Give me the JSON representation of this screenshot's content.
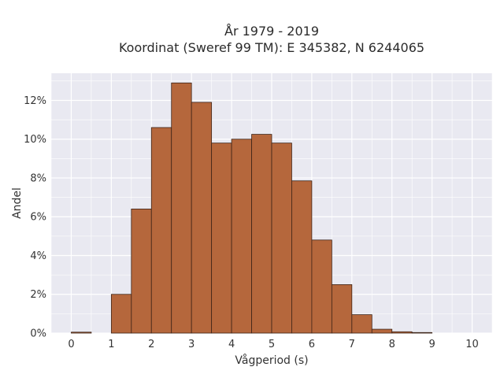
{
  "chart_data": {
    "type": "bar",
    "title": "År 1979 - 2019",
    "subtitle": "Koordinat (Sweref 99 TM): E 345382, N 6244065",
    "xlabel": "Vågperiod (s)",
    "ylabel": "Andel",
    "bin_width": 0.5,
    "bins": [
      {
        "x0": 0.0,
        "value": 0.05
      },
      {
        "x0": 1.0,
        "value": 2.0
      },
      {
        "x0": 1.5,
        "value": 6.4
      },
      {
        "x0": 2.0,
        "value": 10.6
      },
      {
        "x0": 2.5,
        "value": 12.9
      },
      {
        "x0": 3.0,
        "value": 11.9
      },
      {
        "x0": 3.5,
        "value": 9.8
      },
      {
        "x0": 4.0,
        "value": 10.0
      },
      {
        "x0": 4.5,
        "value": 10.25
      },
      {
        "x0": 5.0,
        "value": 9.8
      },
      {
        "x0": 5.5,
        "value": 7.85
      },
      {
        "x0": 6.0,
        "value": 4.8
      },
      {
        "x0": 6.5,
        "value": 2.5
      },
      {
        "x0": 7.0,
        "value": 0.95
      },
      {
        "x0": 7.5,
        "value": 0.2
      },
      {
        "x0": 8.0,
        "value": 0.07
      },
      {
        "x0": 8.5,
        "value": 0.03
      }
    ],
    "xlim": [
      -0.5,
      10.5
    ],
    "ylim": [
      0,
      13.4
    ],
    "x_ticks": [
      "0",
      "1",
      "2",
      "3",
      "4",
      "5",
      "6",
      "7",
      "8",
      "9",
      "10"
    ],
    "y_ticks": [
      {
        "value": 0,
        "label": "0%"
      },
      {
        "value": 2,
        "label": "2%"
      },
      {
        "value": 4,
        "label": "4%"
      },
      {
        "value": 6,
        "label": "6%"
      },
      {
        "value": 8,
        "label": "8%"
      },
      {
        "value": 10,
        "label": "10%"
      },
      {
        "value": 12,
        "label": "12%"
      }
    ],
    "grid": true,
    "colors": {
      "bar_fill": "#b5673c",
      "bar_stroke": "#3d2418",
      "plot_bg": "#e9e9f1",
      "grid": "#ffffff"
    }
  }
}
